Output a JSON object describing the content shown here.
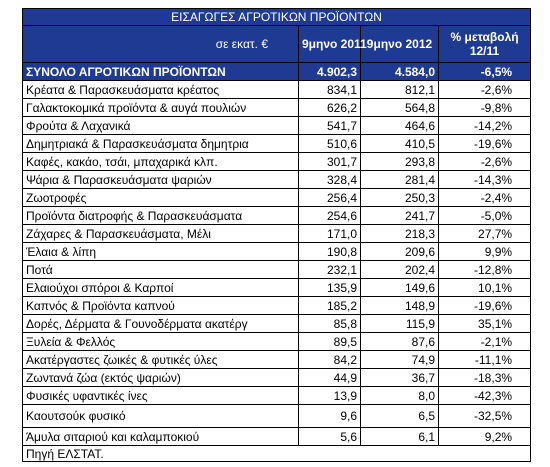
{
  "table": {
    "title": "ΕΙΣΑΓΩΓΕΣ ΑΓΡΟΤΙΚΩΝ ΠΡΟΪΟΝΤΩΝ",
    "header": [
      "σε εκατ. €",
      "9μηνο 2011",
      "9μηνο 2012",
      "% μεταβολή 12/11"
    ],
    "total": [
      "ΣΥΝΟΛΟ ΑΓΡΟΤΙΚΩΝ ΠΡΟΪΟΝΤΩΝ",
      "4.902,3",
      "4.584,0",
      "-6,5%"
    ],
    "rows": [
      [
        "Κρέατα & Παρασκευάσματα κρέατος",
        "834,1",
        "812,1",
        "-2,6%"
      ],
      [
        "Γαλακτοκομικά προϊόντα & αυγά πουλιών",
        "626,2",
        "564,8",
        "-9,8%"
      ],
      [
        "Φρούτα & Λαχανικά",
        "541,7",
        "464,6",
        "-14,2%"
      ],
      [
        "Δημητριακά & Παρασκευάσματα δημητρια",
        "510,6",
        "410,5",
        "-19,6%"
      ],
      [
        "Καφές, κακάο, τσάι, μπαχαρικά κλπ.",
        "301,7",
        "293,8",
        "-2,6%"
      ],
      [
        "Ψάρια & Παρασκευάσματα ψαριών",
        "328,4",
        "281,4",
        "-14,3%"
      ],
      [
        "Ζωοτροφές",
        "256,4",
        "250,3",
        "-2,4%"
      ],
      [
        "Προϊόντα διατροφής & Παρασκευάσματα",
        "254,6",
        "241,7",
        "-5,0%"
      ],
      [
        "Ζάχαρες & Παρασκευάσματα, Μέλι",
        "171,0",
        "218,3",
        "27,7%"
      ],
      [
        "Έλαια & λίπη",
        "190,8",
        "209,6",
        "9,9%"
      ],
      [
        "Ποτά",
        "232,1",
        "202,4",
        "-12,8%"
      ],
      [
        "Ελαιούχοι σπόροι & Καρποί",
        "135,9",
        "149,6",
        "10,1%"
      ],
      [
        "Καπνός & Προϊόντα καπνού",
        "185,2",
        "148,9",
        "-19,6%"
      ],
      [
        "Δορές, Δέρματα & Γουνοδέρματα ακατέργ",
        "85,8",
        "115,9",
        "35,1%"
      ],
      [
        "Ξυλεία & Φελλός",
        "89,5",
        "87,6",
        "-2,1%"
      ],
      [
        "Ακατέργαστες ζωικές & φυτικές ύλες",
        "84,2",
        "74,9",
        "-11,1%"
      ],
      [
        "Ζωντανά ζώα (εκτός ψαριών)",
        "44,9",
        "36,7",
        "-18,3%"
      ],
      [
        "Φυσικές υφαντικές ίνες",
        "13,9",
        "8,0",
        "-42,3%"
      ],
      [
        "Καουτσούκ φυσικό",
        "9,6",
        "6,5",
        "-32,5%"
      ],
      [
        "Άμυλα σιταριού και καλαμποκιού",
        "5,6",
        "6,1",
        "9,2%"
      ]
    ],
    "source": "Πηγή ΕΛΣΤΑΤ."
  }
}
